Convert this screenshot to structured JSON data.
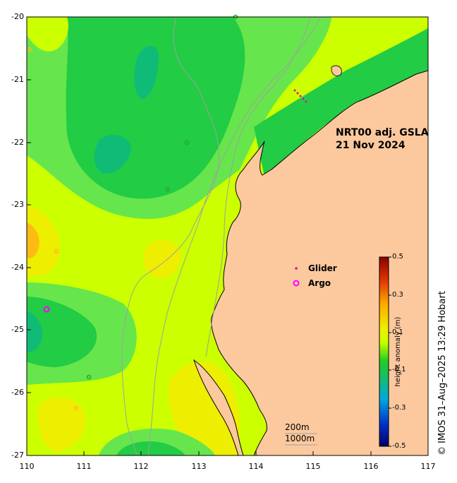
{
  "title": {
    "line1": "NRT00 adj. GSLA",
    "line2": "21 Nov 2024"
  },
  "axes": {
    "x_ticks": [
      "110",
      "111",
      "112",
      "113",
      "114",
      "115",
      "116",
      "117"
    ],
    "y_ticks": [
      "-20",
      "-21",
      "-22",
      "-23",
      "-24",
      "-25",
      "-26",
      "-27"
    ],
    "xlim": [
      110,
      117
    ],
    "ylim": [
      -27,
      -20
    ]
  },
  "legend": {
    "glider_label": "Glider",
    "argo_label": "Argo",
    "glider_color": "#e0109a",
    "argo_color": "#ff00ff"
  },
  "colorbar": {
    "title": "height anomaly (m)",
    "labels": [
      "0.5",
      "0.3",
      "0.1",
      "-0.1",
      "-0.3",
      "-0.5"
    ],
    "range": [
      -0.5,
      0.5
    ]
  },
  "scale_bar": {
    "contour_label": "200m",
    "distance_label": "1000m"
  },
  "credit": "© IMOS 31–Aug–2025 13:29 Hobart",
  "colors": {
    "land": "#fcc99e",
    "ocean_base": "#ccff00",
    "green_mid": "#66e64c",
    "green_dark": "#22cc44",
    "teal": "#10bb77",
    "yellow": "#eeee00",
    "orange": "#ffbb11"
  }
}
